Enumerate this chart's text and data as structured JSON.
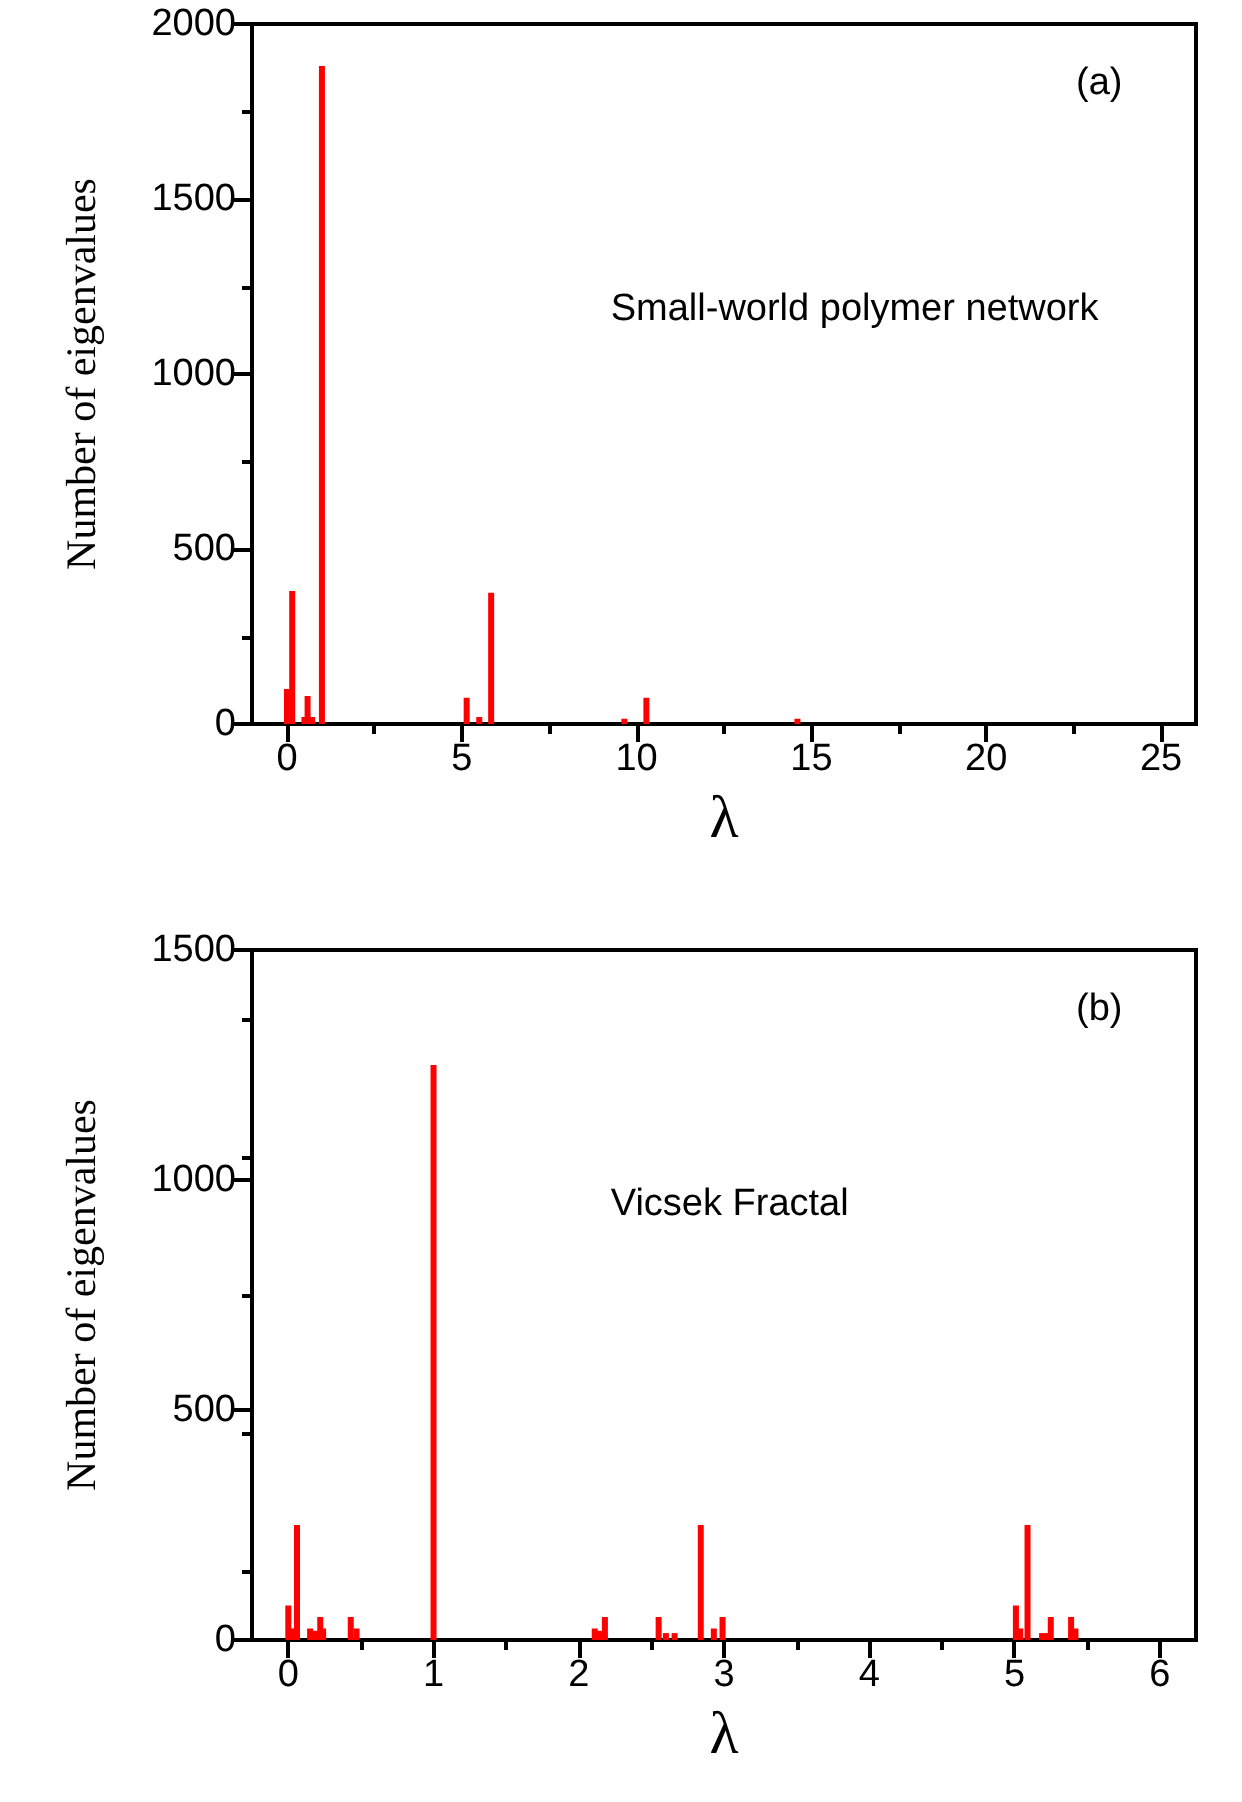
{
  "chart_data": [
    {
      "type": "bar",
      "xlabel": "λ",
      "ylabel": "Number of eigenvalues",
      "annotations": [
        "(a)",
        "Small-world polymer network"
      ],
      "x": [
        0.0,
        0.15,
        0.5,
        0.59,
        0.72,
        1.0,
        5.06,
        5.14,
        5.5,
        5.84,
        9.65,
        10.28,
        14.6
      ],
      "series": [
        {
          "color": "#ff0000",
          "values": [
            100,
            380,
            20,
            80,
            20,
            1880,
            null,
            75,
            20,
            375,
            15,
            75,
            15
          ]
        }
      ],
      "xlim": [
        -1,
        26
      ],
      "xticks": [
        0,
        5,
        10,
        15,
        20,
        25
      ],
      "ylim": [
        0,
        2000
      ],
      "yticks": [
        0,
        500,
        1000,
        1500,
        2000
      ]
    },
    {
      "type": "bar",
      "xlabel": "λ",
      "ylabel": "Number of eigenvalues",
      "annotations": [
        "(b)",
        "Vicsek Fractal"
      ],
      "x": [
        0.0,
        0.02,
        0.06,
        0.15,
        0.19,
        0.22,
        0.24,
        0.43,
        0.47,
        1.0,
        2.11,
        2.14,
        2.18,
        2.53,
        2.55,
        2.6,
        2.66,
        2.84,
        2.93,
        2.99,
        5.01,
        5.04,
        5.09,
        5.19,
        5.22,
        5.25,
        5.39,
        5.42
      ],
      "series": [
        {
          "color": "#ff0000",
          "values": [
            75,
            25,
            250,
            25,
            20,
            50,
            25,
            50,
            25,
            1250,
            25,
            20,
            50,
            null,
            50,
            15,
            15,
            250,
            25,
            50,
            75,
            25,
            250,
            15,
            15,
            50,
            50,
            25
          ]
        }
      ],
      "xlim": [
        -0.25,
        6.25
      ],
      "xticks": [
        0,
        1,
        2,
        3,
        4,
        5,
        6
      ],
      "ylim": [
        0,
        1500
      ],
      "yticks": [
        0,
        500,
        1000,
        1500
      ]
    }
  ]
}
